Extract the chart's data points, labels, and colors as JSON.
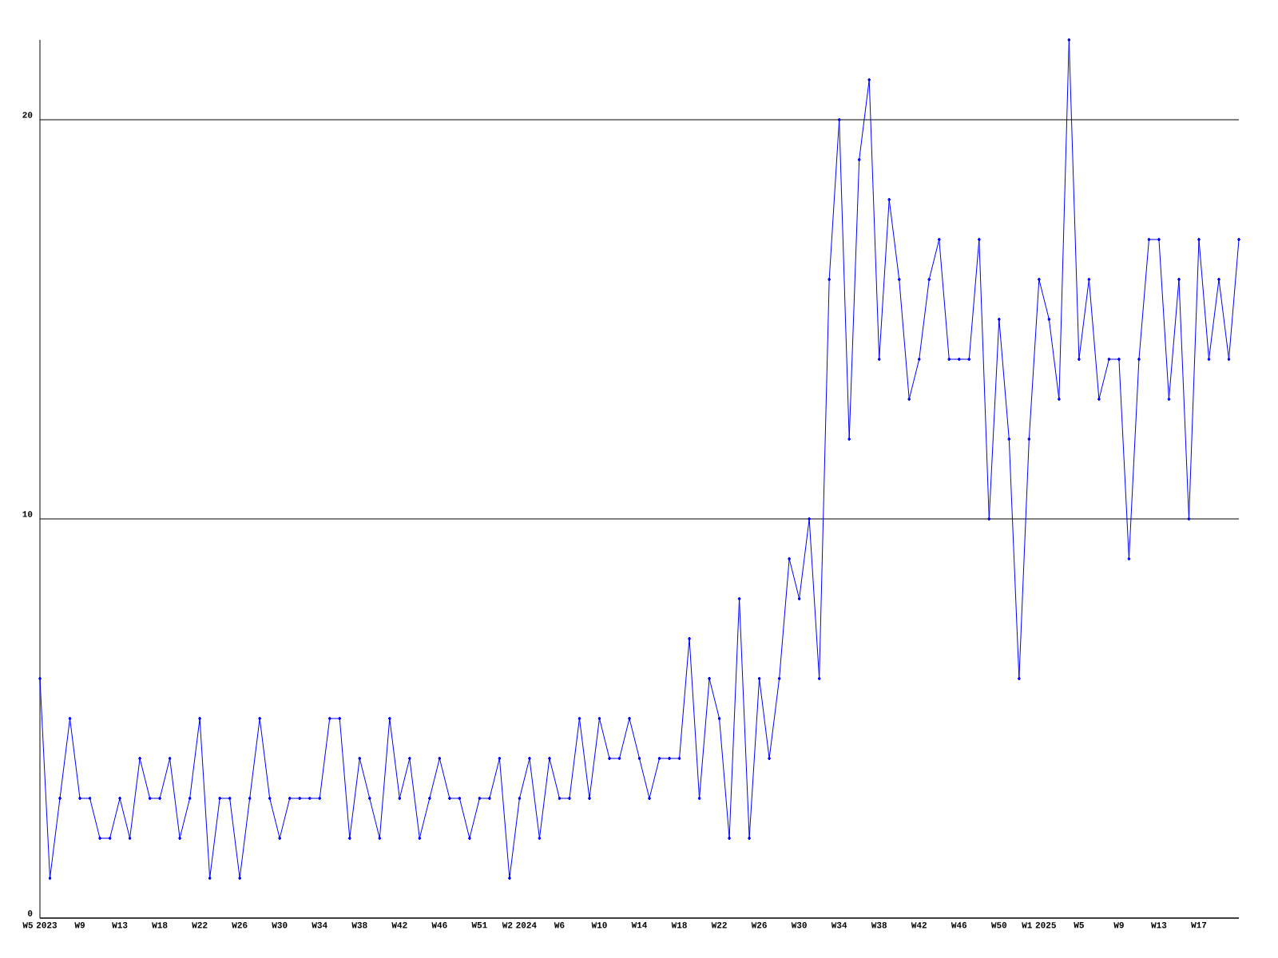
{
  "chart_data": {
    "type": "line",
    "categories": [
      "W5 2023",
      null,
      null,
      null,
      "W9",
      null,
      null,
      null,
      "W13",
      null,
      null,
      null,
      "W18",
      null,
      null,
      null,
      "W22",
      null,
      null,
      null,
      "W26",
      null,
      null,
      null,
      "W30",
      null,
      null,
      null,
      "W34",
      null,
      null,
      null,
      "W38",
      null,
      null,
      null,
      "W42",
      null,
      null,
      null,
      "W46",
      null,
      null,
      null,
      "W51",
      null,
      null,
      null,
      "W2 2024",
      null,
      null,
      null,
      "W6",
      null,
      null,
      null,
      "W10",
      null,
      null,
      null,
      "W14",
      null,
      null,
      null,
      "W18",
      null,
      null,
      null,
      "W22",
      null,
      null,
      null,
      "W26",
      null,
      null,
      null,
      "W30",
      null,
      null,
      null,
      "W34",
      null,
      null,
      null,
      "W38",
      null,
      null,
      null,
      "W42",
      null,
      null,
      null,
      "W46",
      null,
      null,
      null,
      "W50",
      null,
      null,
      null,
      "W1 2025",
      null,
      null,
      null,
      "W5",
      null,
      null,
      null,
      "W9",
      null,
      null,
      null,
      "W13",
      null,
      null,
      null,
      "W17",
      null,
      null,
      null,
      null
    ],
    "values": [
      6,
      1,
      3,
      5,
      3,
      3,
      2,
      2,
      3,
      2,
      4,
      3,
      3,
      4,
      2,
      3,
      5,
      1,
      3,
      3,
      1,
      3,
      5,
      3,
      2,
      3,
      3,
      3,
      3,
      5,
      5,
      2,
      4,
      3,
      2,
      5,
      3,
      4,
      2,
      3,
      4,
      3,
      3,
      2,
      3,
      3,
      4,
      1,
      3,
      4,
      2,
      4,
      3,
      3,
      5,
      3,
      5,
      4,
      4,
      5,
      4,
      3,
      4,
      4,
      4,
      7,
      3,
      6,
      5,
      2,
      8,
      2,
      6,
      4,
      6,
      9,
      8,
      10,
      6,
      16,
      20,
      12,
      19,
      21,
      14,
      18,
      16,
      13,
      14,
      16,
      17,
      14,
      14,
      14,
      17,
      10,
      15,
      12,
      6,
      12,
      16,
      15,
      13,
      22,
      14,
      16,
      13,
      14,
      14,
      9,
      14,
      17,
      17,
      13,
      16,
      10,
      17,
      14,
      16,
      14,
      17
    ],
    "color": "#0000ff",
    "marker": "diamond",
    "line_style": "solid",
    "ylim": [
      0,
      22
    ],
    "yticks": [
      0,
      10,
      20
    ],
    "grid": "y"
  }
}
